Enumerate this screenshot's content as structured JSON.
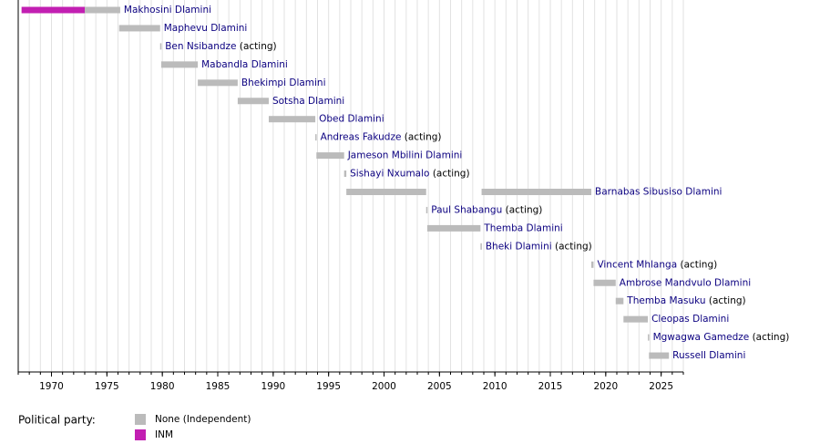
{
  "chart_data": {
    "type": "timeline",
    "xlim": [
      1967,
      2027
    ],
    "xticks": [
      1970,
      1975,
      1980,
      1985,
      1990,
      1995,
      2000,
      2005,
      2010,
      2015,
      2020,
      2025
    ],
    "grid_step": 1,
    "legend_title": "Political party:",
    "parties": [
      {
        "name": "None (Independent)",
        "color": "#bbbbbb"
      },
      {
        "name": "INM",
        "color": "#c21fb2"
      }
    ],
    "rows": [
      {
        "name": "Makhosini Dlamini",
        "segments": [
          {
            "start": 1967.3,
            "end": 1973.0,
            "party": 1
          },
          {
            "start": 1973.0,
            "end": 1976.2,
            "party": 0
          }
        ]
      },
      {
        "name": "Maphevu Dlamini",
        "segments": [
          {
            "start": 1976.1,
            "end": 1979.8,
            "party": 0
          }
        ]
      },
      {
        "name": "Ben Nsibandze",
        "note": "(acting)",
        "segments": [
          {
            "start": 1979.8,
            "end": 1979.9,
            "party": 0
          }
        ]
      },
      {
        "name": "Mabandla Dlamini",
        "segments": [
          {
            "start": 1979.9,
            "end": 1983.2,
            "party": 0
          }
        ]
      },
      {
        "name": "Bhekimpi Dlamini",
        "segments": [
          {
            "start": 1983.2,
            "end": 1986.8,
            "party": 0
          }
        ]
      },
      {
        "name": "Sotsha Dlamini",
        "segments": [
          {
            "start": 1986.8,
            "end": 1989.6,
            "party": 0
          }
        ]
      },
      {
        "name": "Obed Dlamini",
        "segments": [
          {
            "start": 1989.6,
            "end": 1993.8,
            "party": 0
          }
        ]
      },
      {
        "name": "Andreas Fakudze",
        "note": "(acting)",
        "segments": [
          {
            "start": 1993.8,
            "end": 1993.9,
            "party": 0
          }
        ]
      },
      {
        "name": "Jameson Mbilini Dlamini",
        "segments": [
          {
            "start": 1993.9,
            "end": 1996.4,
            "party": 0
          }
        ]
      },
      {
        "name": "Sishayi Nxumalo",
        "note": "(acting)",
        "segments": [
          {
            "start": 1996.4,
            "end": 1996.6,
            "party": 0
          }
        ]
      },
      {
        "name": "Barnabas Sibusiso Dlamini",
        "segments": [
          {
            "start": 1996.6,
            "end": 2003.8,
            "party": 0
          },
          {
            "start": 2008.8,
            "end": 2018.7,
            "party": 0
          }
        ]
      },
      {
        "name": "Paul Shabangu",
        "note": "(acting)",
        "segments": [
          {
            "start": 2003.8,
            "end": 2003.9,
            "party": 0
          }
        ]
      },
      {
        "name": "Themba Dlamini",
        "segments": [
          {
            "start": 2003.9,
            "end": 2008.7,
            "party": 0
          }
        ]
      },
      {
        "name": "Bheki Dlamini",
        "note": "(acting)",
        "segments": [
          {
            "start": 2008.7,
            "end": 2008.8,
            "party": 0
          }
        ]
      },
      {
        "name": "Vincent Mhlanga",
        "note": "(acting)",
        "segments": [
          {
            "start": 2018.7,
            "end": 2018.9,
            "party": 0
          }
        ]
      },
      {
        "name": "Ambrose Mandvulo Dlamini",
        "segments": [
          {
            "start": 2018.9,
            "end": 2020.9,
            "party": 0
          }
        ]
      },
      {
        "name": "Themba Masuku",
        "note": "(acting)",
        "segments": [
          {
            "start": 2020.9,
            "end": 2021.6,
            "party": 0
          }
        ]
      },
      {
        "name": "Cleopas Dlamini",
        "segments": [
          {
            "start": 2021.6,
            "end": 2023.8,
            "party": 0
          }
        ]
      },
      {
        "name": "Mgwagwa Gamedze",
        "note": "(acting)",
        "segments": [
          {
            "start": 2023.8,
            "end": 2023.9,
            "party": 0
          }
        ]
      },
      {
        "name": "Russell Dlamini",
        "segments": [
          {
            "start": 2023.9,
            "end": 2025.7,
            "party": 0
          }
        ]
      }
    ]
  }
}
